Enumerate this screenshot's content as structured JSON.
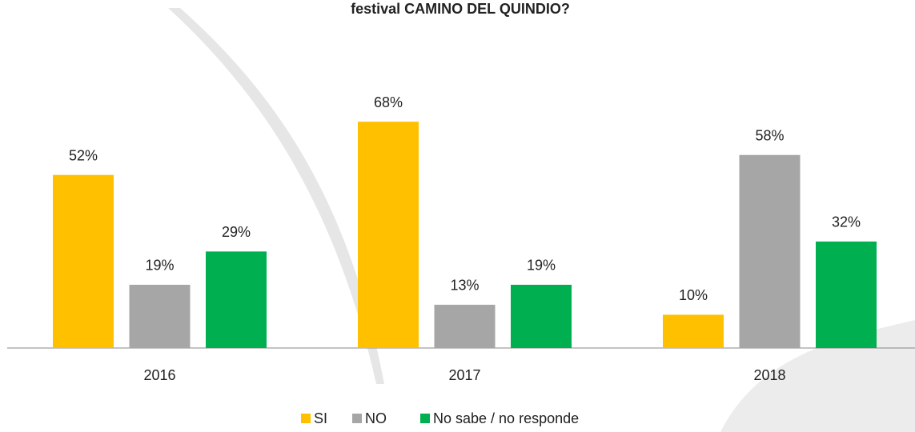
{
  "chart_data": {
    "type": "bar",
    "title": "festival CAMINO DEL QUINDIO?",
    "categories": [
      "2016",
      "2017",
      "2018"
    ],
    "series": [
      {
        "name": "SI",
        "color": "#FFC000",
        "values": [
          52,
          68,
          10
        ],
        "value_labels": [
          "52%",
          "68%",
          "10%"
        ]
      },
      {
        "name": "NO",
        "color": "#A6A6A6",
        "values": [
          19,
          13,
          58
        ],
        "value_labels": [
          "19%",
          "13%",
          "58%"
        ]
      },
      {
        "name": "No sabe / no responde",
        "color": "#00B050",
        "values": [
          29,
          19,
          32
        ],
        "value_labels": [
          "29%",
          "19%",
          "32%"
        ]
      }
    ]
  }
}
